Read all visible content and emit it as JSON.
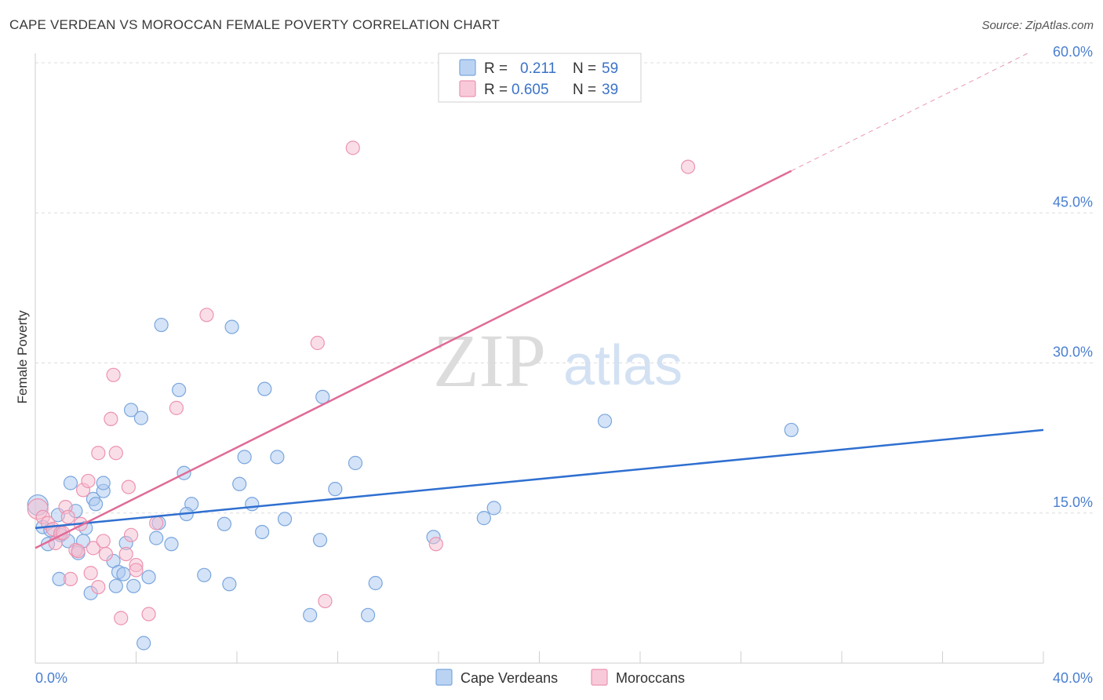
{
  "title": "CAPE VERDEAN VS MOROCCAN FEMALE POVERTY CORRELATION CHART",
  "source": "Source: ZipAtlas.com",
  "watermark": {
    "zip": "ZIP",
    "atlas": "atlas"
  },
  "colors": {
    "cape_fill": "#aac8ef",
    "cape_stroke": "#7aa6de",
    "cape_line": "#2f6fd0",
    "moroccan_fill": "#f6bdd0",
    "moroccan_stroke": "#ec93b0",
    "moroccan_line": "#e06b97"
  },
  "legend_top": {
    "rows": [
      {
        "r_label": "R =",
        "r_value": "0.211",
        "n_label": "N =",
        "n_value": "59"
      },
      {
        "r_label": "R =",
        "r_value": "0.605",
        "n_label": "N =",
        "n_value": "39"
      }
    ]
  },
  "chart_data": {
    "type": "scatter",
    "title": "CAPE VERDEAN VS MOROCCAN FEMALE POVERTY CORRELATION CHART",
    "xlabel": "",
    "ylabel": "Female Poverty",
    "xlim": [
      0,
      40
    ],
    "ylim": [
      0,
      60
    ],
    "x_tick_labels": [
      "0.0%",
      "40.0%"
    ],
    "y_ticks": [
      15,
      30,
      45,
      60
    ],
    "y_tick_labels": [
      "15.0%",
      "30.0%",
      "45.0%",
      "60.0%"
    ],
    "grid": true,
    "legend_position": "bottom",
    "series": [
      {
        "name": "Cape Verdeans",
        "r": 0.211,
        "n": 59,
        "trend": {
          "x0": 0,
          "y0": 13.5,
          "x1": 40,
          "y1": 23.3
        },
        "points": [
          [
            0.1,
            15.8
          ],
          [
            0.3,
            13.6
          ],
          [
            0.5,
            11.9
          ],
          [
            0.6,
            13.3
          ],
          [
            0.9,
            14.8
          ],
          [
            0.95,
            8.4
          ],
          [
            1.0,
            12.8
          ],
          [
            1.3,
            12.2
          ],
          [
            1.4,
            18.0
          ],
          [
            1.6,
            15.2
          ],
          [
            1.7,
            11.0
          ],
          [
            2.0,
            13.5
          ],
          [
            2.3,
            16.4
          ],
          [
            2.4,
            15.9
          ],
          [
            2.7,
            17.2
          ],
          [
            2.7,
            18.0
          ],
          [
            2.2,
            7.0
          ],
          [
            3.1,
            10.2
          ],
          [
            3.2,
            7.7
          ],
          [
            3.3,
            9.1
          ],
          [
            3.6,
            12.0
          ],
          [
            3.8,
            25.3
          ],
          [
            3.9,
            7.7
          ],
          [
            4.2,
            24.5
          ],
          [
            4.3,
            2.0
          ],
          [
            4.5,
            8.6
          ],
          [
            4.8,
            12.5
          ],
          [
            4.9,
            14.0
          ],
          [
            5.0,
            33.8
          ],
          [
            5.4,
            11.9
          ],
          [
            5.7,
            27.3
          ],
          [
            5.9,
            19.0
          ],
          [
            6.2,
            15.9
          ],
          [
            6.7,
            8.8
          ],
          [
            7.5,
            13.9
          ],
          [
            7.7,
            7.9
          ],
          [
            7.8,
            33.6
          ],
          [
            8.1,
            17.9
          ],
          [
            8.3,
            20.6
          ],
          [
            8.6,
            15.9
          ],
          [
            9.0,
            13.1
          ],
          [
            9.1,
            27.4
          ],
          [
            9.6,
            20.6
          ],
          [
            9.9,
            14.4
          ],
          [
            10.9,
            4.8
          ],
          [
            11.3,
            12.3
          ],
          [
            11.4,
            26.6
          ],
          [
            11.9,
            17.4
          ],
          [
            12.7,
            20.0
          ],
          [
            13.2,
            4.8
          ],
          [
            13.5,
            8.0
          ],
          [
            15.8,
            12.6
          ],
          [
            17.8,
            14.5
          ],
          [
            18.2,
            15.5
          ],
          [
            22.6,
            24.2
          ],
          [
            30.0,
            23.3
          ],
          [
            1.9,
            12.2
          ],
          [
            3.5,
            8.9
          ],
          [
            6.0,
            14.9
          ]
        ]
      },
      {
        "name": "Moroccans",
        "r": 0.605,
        "n": 39,
        "trend": {
          "x0": 0,
          "y0": 11.5,
          "x1": 30,
          "y1": 49.2,
          "dash_x1": 39.5,
          "dash_y1": 61.1
        },
        "points": [
          [
            0.1,
            15.4
          ],
          [
            0.3,
            14.6
          ],
          [
            0.5,
            14.0
          ],
          [
            0.7,
            13.4
          ],
          [
            0.8,
            12.0
          ],
          [
            1.0,
            13.0
          ],
          [
            1.2,
            15.6
          ],
          [
            1.3,
            14.6
          ],
          [
            1.4,
            8.4
          ],
          [
            1.6,
            11.3
          ],
          [
            1.7,
            11.2
          ],
          [
            1.8,
            13.9
          ],
          [
            1.9,
            17.3
          ],
          [
            2.1,
            18.2
          ],
          [
            2.2,
            9.0
          ],
          [
            2.3,
            11.5
          ],
          [
            2.5,
            7.6
          ],
          [
            2.5,
            21.0
          ],
          [
            2.8,
            10.9
          ],
          [
            3.0,
            24.4
          ],
          [
            3.1,
            28.8
          ],
          [
            3.2,
            21.0
          ],
          [
            3.4,
            4.5
          ],
          [
            3.6,
            10.9
          ],
          [
            3.7,
            17.6
          ],
          [
            3.8,
            12.8
          ],
          [
            4.0,
            9.8
          ],
          [
            4.5,
            4.9
          ],
          [
            4.8,
            14.0
          ],
          [
            5.6,
            25.5
          ],
          [
            6.8,
            34.8
          ],
          [
            11.2,
            32.0
          ],
          [
            11.5,
            6.2
          ],
          [
            12.6,
            51.5
          ],
          [
            15.9,
            11.9
          ],
          [
            25.9,
            49.6
          ],
          [
            1.1,
            13.0
          ],
          [
            2.7,
            12.2
          ],
          [
            4.0,
            9.3
          ]
        ]
      }
    ]
  }
}
